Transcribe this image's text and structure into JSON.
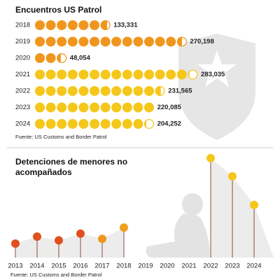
{
  "chart_data": [
    {
      "type": "pictogram",
      "title": "Encuentros US Patrol",
      "categories": [
        "2018",
        "2019",
        "2020",
        "2021",
        "2022",
        "2023",
        "2024"
      ],
      "values": [
        133331,
        270198,
        48054,
        283035,
        231565,
        220085,
        204252
      ],
      "value_labels": [
        "133,331",
        "270,198",
        "48,054",
        "283,035",
        "231,565",
        "220,085",
        "204,252"
      ],
      "colors": [
        "#f0961e",
        "#f0961e",
        "#f0961e",
        "#f5c71a",
        "#f5c71a",
        "#f5c71a",
        "#f5c71a"
      ],
      "source": "Fuente: US Customs and Border Patrol"
    },
    {
      "type": "lollipop",
      "title": "Detenciones de menores no acompañados",
      "categories": [
        "2013",
        "2014",
        "2015",
        "2016",
        "2017",
        "2018",
        "2019",
        "2020",
        "2021",
        "2022",
        "2023",
        "2024"
      ],
      "values": [
        38759,
        48000,
        43000,
        52000,
        45000,
        60000,
        null,
        null,
        null,
        152057,
        128000,
        90000
      ],
      "colors": [
        "#e0501e",
        "#e0501e",
        "#e0501e",
        "#e0501e",
        "#f0961e",
        "#f0a020",
        null,
        null,
        null,
        "#f5c71a",
        "#f5c71a",
        "#f5c71a"
      ],
      "source": "Fuente: US Customs and Border Patrol"
    }
  ]
}
